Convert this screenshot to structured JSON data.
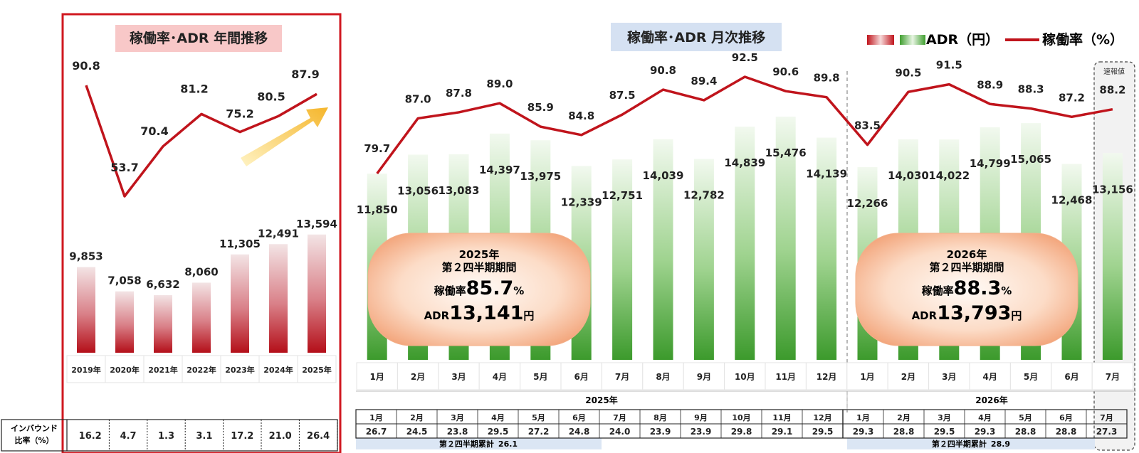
{
  "chart_data": [
    {
      "type": "bar+line",
      "title": "稼働率･ADR 年間推移",
      "categories": [
        "2019年",
        "2020年",
        "2021年",
        "2022年",
        "2023年",
        "2024年",
        "2025年"
      ],
      "series": [
        {
          "name": "ADR（円）",
          "type": "bar",
          "values": [
            9853,
            7058,
            6632,
            8060,
            11305,
            12491,
            13594
          ],
          "labels": [
            "9,853",
            "7,058",
            "6,632",
            "8,060",
            "11,305",
            "12,491",
            "13,594"
          ]
        },
        {
          "name": "稼働率（%）",
          "type": "line",
          "values": [
            90.8,
            53.7,
            70.4,
            81.2,
            75.2,
            80.5,
            87.9
          ],
          "labels": [
            "90.8",
            "53.7",
            "70.4",
            "81.2",
            "75.2",
            "80.5",
            "87.9"
          ]
        }
      ],
      "table": {
        "header": "インバウンド\n比率（%）",
        "header_lines": [
          "インバウンド",
          "比率（%）"
        ],
        "values": [
          "16.2",
          "4.7",
          "1.3",
          "3.1",
          "17.2",
          "21.0",
          "26.4"
        ]
      }
    },
    {
      "type": "bar+line",
      "title": "稼働率･ADR 月次推移",
      "legend": {
        "bar": "ADR（円）",
        "line": "稼働率（%）",
        "placement": "top-right"
      },
      "categories": [
        "1月",
        "2月",
        "3月",
        "4月",
        "5月",
        "6月",
        "7月",
        "8月",
        "9月",
        "10月",
        "11月",
        "12月",
        "1月",
        "2月",
        "3月",
        "4月",
        "5月",
        "6月",
        "7月"
      ],
      "year_groups": [
        {
          "label": "2025年",
          "count": 12
        },
        {
          "label": "2026年",
          "count": 7
        }
      ],
      "series": [
        {
          "name": "ADR（円）",
          "type": "bar",
          "values": [
            11850,
            13056,
            13083,
            14397,
            13975,
            12339,
            12751,
            14039,
            12782,
            14839,
            15476,
            14139,
            12266,
            14030,
            14022,
            14799,
            15065,
            12468,
            13156
          ],
          "labels": [
            "11,850",
            "13,056",
            "13,083",
            "14,397",
            "13,975",
            "12,339",
            "12,751",
            "14,039",
            "12,782",
            "14,839",
            "15,476",
            "14,139",
            "12,266",
            "14,030",
            "14,022",
            "14,799",
            "15,065",
            "12,468",
            "13,156"
          ]
        },
        {
          "name": "稼働率（%）",
          "type": "line",
          "values": [
            79.7,
            87.0,
            87.8,
            89.0,
            85.9,
            84.8,
            87.5,
            90.8,
            89.4,
            92.5,
            90.6,
            89.8,
            83.5,
            90.5,
            91.5,
            88.9,
            88.3,
            87.2,
            88.2
          ],
          "labels": [
            "79.7",
            "87.0",
            "87.8",
            "89.0",
            "85.9",
            "84.8",
            "87.5",
            "90.8",
            "89.4",
            "92.5",
            "90.6",
            "89.8",
            "83.5",
            "90.5",
            "91.5",
            "88.9",
            "88.3",
            "87.2",
            "88.2"
          ]
        }
      ],
      "preliminary_label": "速報値",
      "summaries": [
        {
          "year": "2025年",
          "period": "第２四半期期間",
          "occ_label": "稼働率",
          "occ_value": "85.7",
          "occ_unit": "%",
          "adr_label": "ADR",
          "adr_value": "13,141",
          "adr_unit": "円"
        },
        {
          "year": "2026年",
          "period": "第２四半期期間",
          "occ_label": "稼働率",
          "occ_value": "88.3",
          "occ_unit": "%",
          "adr_label": "ADR",
          "adr_value": "13,793",
          "adr_unit": "円"
        }
      ],
      "inbound_table": {
        "months": [
          "1月",
          "2月",
          "3月",
          "4月",
          "5月",
          "6月",
          "7月",
          "8月",
          "9月",
          "10月",
          "11月",
          "12月",
          "1月",
          "2月",
          "3月",
          "4月",
          "5月",
          "6月",
          "7月"
        ],
        "values": [
          "26.7",
          "24.5",
          "23.8",
          "29.5",
          "27.2",
          "24.8",
          "24.0",
          "23.9",
          "23.9",
          "29.8",
          "29.1",
          "29.5",
          "29.3",
          "28.8",
          "29.5",
          "29.3",
          "28.8",
          "28.8",
          "27.3"
        ],
        "cumulative": [
          {
            "label": "第２四半期累計",
            "value": "26.1"
          },
          {
            "label": "第２四半期累計",
            "value": "28.9"
          }
        ]
      }
    }
  ],
  "colors": {
    "line": "#c0141c",
    "bar_red_top": "#f0dfe0",
    "bar_red_bottom": "#b8101a",
    "bar_green_top": "#eef7ea",
    "bar_green_bottom": "#3e9e2e",
    "title_left_bg": "#f8c8c8",
    "title_right_bg": "#d5e1f2",
    "frame_red": "#d01820",
    "cumulative_bg": "#dbe6f4",
    "arrow": "#f5c242"
  }
}
